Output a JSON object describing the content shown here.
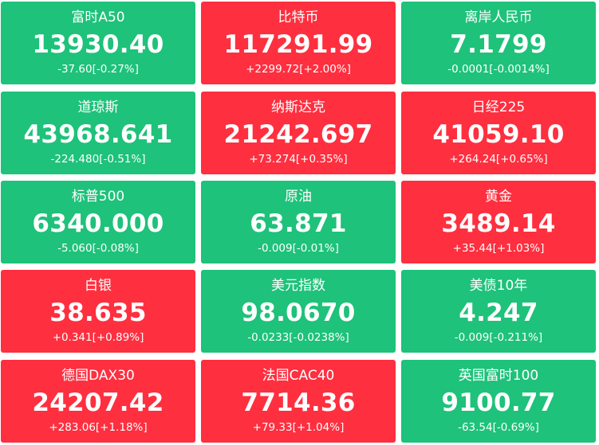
{
  "colors": {
    "down": "#1ec27a",
    "up": "#fe2f3f",
    "text": "#ffffff"
  },
  "tiles": [
    {
      "name": "富时A50",
      "price": "13930.40",
      "change": "-37.60[-0.27%]",
      "direction": "down"
    },
    {
      "name": "比特币",
      "price": "117291.99",
      "change": "+2299.72[+2.00%]",
      "direction": "up"
    },
    {
      "name": "离岸人民币",
      "price": "7.1799",
      "change": "-0.0001[-0.0014%]",
      "direction": "down"
    },
    {
      "name": "道琼斯",
      "price": "43968.641",
      "change": "-224.480[-0.51%]",
      "direction": "down"
    },
    {
      "name": "纳斯达克",
      "price": "21242.697",
      "change": "+73.274[+0.35%]",
      "direction": "up"
    },
    {
      "name": "日经225",
      "price": "41059.10",
      "change": "+264.24[+0.65%]",
      "direction": "up"
    },
    {
      "name": "标普500",
      "price": "6340.000",
      "change": "-5.060[-0.08%]",
      "direction": "down"
    },
    {
      "name": "原油",
      "price": "63.871",
      "change": "-0.009[-0.01%]",
      "direction": "down"
    },
    {
      "name": "黄金",
      "price": "3489.14",
      "change": "+35.44[+1.03%]",
      "direction": "up"
    },
    {
      "name": "白银",
      "price": "38.635",
      "change": "+0.341[+0.89%]",
      "direction": "up"
    },
    {
      "name": "美元指数",
      "price": "98.0670",
      "change": "-0.0233[-0.0238%]",
      "direction": "down"
    },
    {
      "name": "美债10年",
      "price": "4.247",
      "change": "-0.009[-0.211%]",
      "direction": "down"
    },
    {
      "name": "德国DAX30",
      "price": "24207.42",
      "change": "+283.06[+1.18%]",
      "direction": "up"
    },
    {
      "name": "法国CAC40",
      "price": "7714.36",
      "change": "+79.33[+1.04%]",
      "direction": "up"
    },
    {
      "name": "英国富时100",
      "price": "9100.77",
      "change": "-63.54[-0.69%]",
      "direction": "down"
    }
  ]
}
